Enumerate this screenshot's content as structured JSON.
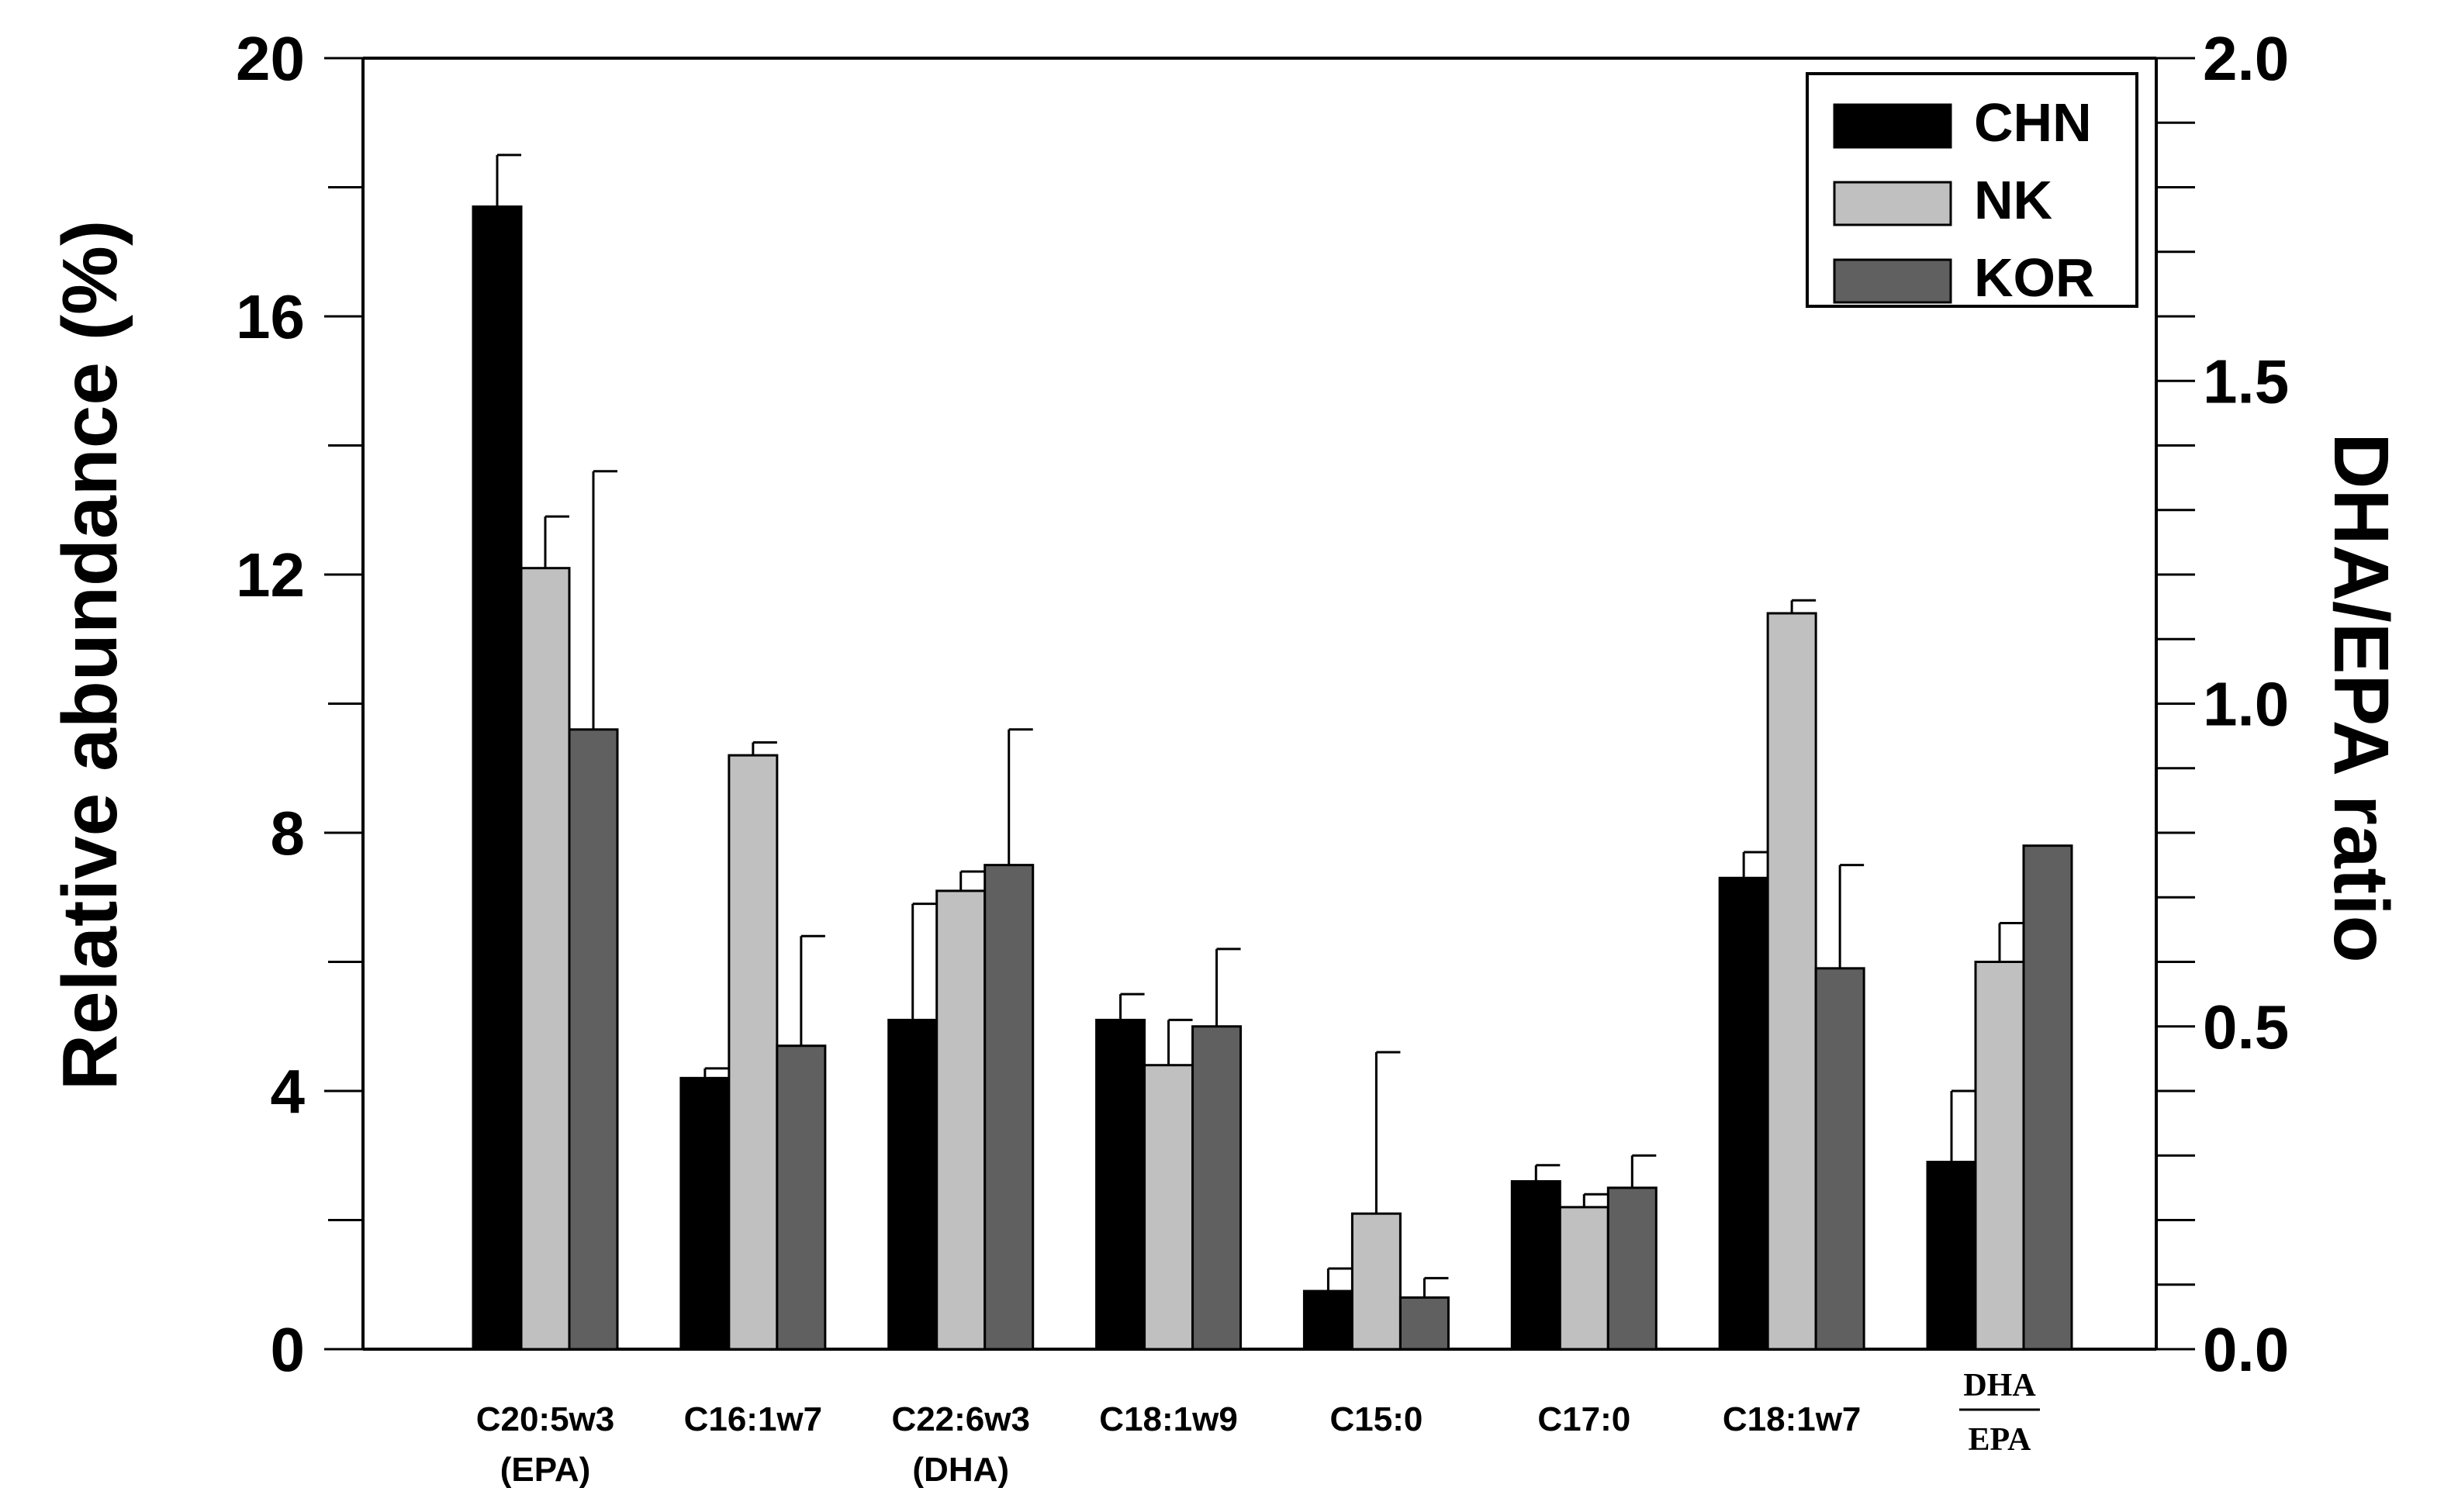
{
  "chart_data": {
    "type": "bar",
    "ylabel": "Relative abundance (%)",
    "y2label": "DHA/EPA ratio",
    "ylim": [
      0,
      20
    ],
    "y2lim": [
      0,
      2.0
    ],
    "yticks": [
      "0",
      "4",
      "8",
      "12",
      "16",
      "20"
    ],
    "y2ticks": [
      "0.0",
      "0.5",
      "1.0",
      "1.5",
      "2.0"
    ],
    "grid": false,
    "legend_position": "top-right",
    "categories": [
      {
        "line1": "C20:5w3",
        "line2": "(EPA)"
      },
      {
        "line1": "C16:1w7",
        "line2": ""
      },
      {
        "line1": "C22:6w3",
        "line2": "(DHA)"
      },
      {
        "line1": "C18:1w9",
        "line2": ""
      },
      {
        "line1": "C15:0",
        "line2": ""
      },
      {
        "line1": "C17:0",
        "line2": ""
      },
      {
        "line1": "C18:1w7",
        "line2": ""
      },
      {
        "numerator": "DHA",
        "denominator": "EPA",
        "fraction": true
      }
    ],
    "series": [
      {
        "name": "CHN",
        "color": "#000000",
        "values": [
          17.7,
          4.2,
          5.1,
          5.1,
          0.9,
          2.6,
          7.3,
          2.9
        ],
        "errors": [
          0.8,
          0.15,
          1.8,
          0.4,
          0.35,
          0.25,
          0.4,
          1.1
        ]
      },
      {
        "name": "NK",
        "color": "#c0c0c0",
        "values": [
          12.1,
          9.2,
          7.1,
          4.4,
          2.1,
          2.2,
          11.4,
          6.0
        ],
        "errors": [
          0.8,
          0.2,
          0.3,
          0.7,
          2.5,
          0.2,
          0.2,
          0.6
        ]
      },
      {
        "name": "KOR",
        "color": "#606060",
        "values": [
          9.6,
          4.7,
          7.5,
          5.0,
          0.8,
          2.5,
          5.9,
          7.8
        ],
        "errors": [
          4.0,
          1.7,
          2.1,
          1.2,
          0.3,
          0.5,
          1.6,
          0.0
        ]
      }
    ]
  }
}
